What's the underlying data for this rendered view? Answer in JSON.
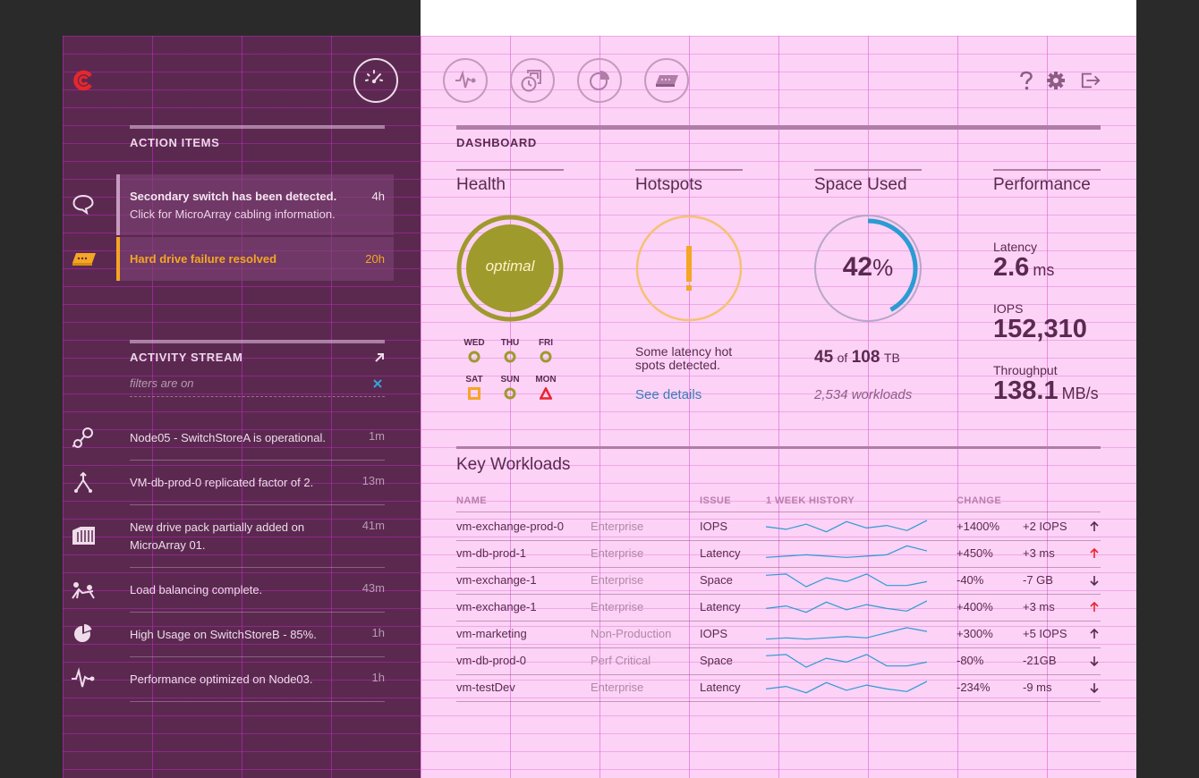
{
  "colors": {
    "sidebar_bg": "#5b2950",
    "main_bg": "#fcd2f6",
    "accent_plum": "#5b2950",
    "optimal_green": "#9e9a2c",
    "warning_orange": "#f5a623",
    "space_blue": "#2c9bd3",
    "alert_red": "#e8262b",
    "link_blue": "#3a7fb8"
  },
  "nav": {
    "icons": [
      "dashboard-icon",
      "performance-icon",
      "history-icon",
      "analytics-icon",
      "hardware-icon"
    ],
    "utility_icons": [
      "help-icon",
      "settings-icon",
      "logout-icon"
    ]
  },
  "sidebar": {
    "action_items": {
      "heading": "ACTION ITEMS",
      "items": [
        {
          "icon": "chat-bubble-icon",
          "title": "Secondary switch has been detected.",
          "subtitle": "Click for MicroArray cabling information.",
          "time": "4h",
          "status": "info"
        },
        {
          "icon": "hard-drive-icon",
          "title": "Hard drive failure resolved",
          "subtitle": "",
          "time": "20h",
          "status": "warning"
        }
      ]
    },
    "activity_stream": {
      "heading": "ACTIVITY STREAM",
      "filter_text": "filters are on",
      "items": [
        {
          "icon": "node-link-icon",
          "text": "Node05 - SwitchStoreA is operational.",
          "time": "1m"
        },
        {
          "icon": "replicate-icon",
          "text": "VM-db-prod-0 replicated factor of 2.",
          "time": "13m"
        },
        {
          "icon": "drive-pack-icon",
          "text": "New drive pack partially added on MicroArray 01.",
          "time": "41m"
        },
        {
          "icon": "balance-icon",
          "text": "Load balancing complete.",
          "time": "43m"
        },
        {
          "icon": "pie-usage-icon",
          "text": "High Usage on SwitchStoreB - 85%.",
          "time": "1h"
        },
        {
          "icon": "pulse-icon",
          "text": "Performance optimized on Node03.",
          "time": "1h"
        }
      ]
    }
  },
  "dashboard": {
    "heading": "DASHBOARD",
    "health": {
      "title": "Health",
      "status": "optimal",
      "days": [
        {
          "label": "WED",
          "state": "ok"
        },
        {
          "label": "THU",
          "state": "ok"
        },
        {
          "label": "FRI",
          "state": "ok"
        },
        {
          "label": "SAT",
          "state": "warning"
        },
        {
          "label": "SUN",
          "state": "ok"
        },
        {
          "label": "MON",
          "state": "alert"
        }
      ]
    },
    "hotspots": {
      "title": "Hotspots",
      "icon": "exclamation-icon",
      "message": "Some latency hot spots detected.",
      "link": "See details"
    },
    "space": {
      "title": "Space Used",
      "percent": 42,
      "percent_number": "42",
      "percent_sign": "%",
      "used": "45",
      "of": "of",
      "total": "108",
      "unit": "TB",
      "workloads": "2,534 workloads"
    },
    "performance": {
      "title": "Performance",
      "latency_label": "Latency",
      "latency_value": "2.6",
      "latency_unit": "ms",
      "iops_label": "IOPS",
      "iops_value": "152,310",
      "throughput_label": "Throughput",
      "throughput_value": "138.1",
      "throughput_unit": "MB/s"
    },
    "key_workloads": {
      "title": "Key Workloads",
      "columns": [
        "NAME",
        "ISSUE",
        "1 WEEK HISTORY",
        "CHANGE"
      ],
      "rows": [
        {
          "name": "vm-exchange-prod-0",
          "tier": "Enterprise",
          "issue": "IOPS",
          "change_pct": "+1400%",
          "change_abs": "+2 IOPS",
          "direction": "up",
          "severity": "normal",
          "history": [
            7,
            5,
            9,
            3,
            11,
            6,
            8,
            4,
            12
          ]
        },
        {
          "name": "vm-db-prod-1",
          "tier": "Enterprise",
          "issue": "Latency",
          "change_pct": "+450%",
          "change_abs": "+3 ms",
          "direction": "up",
          "severity": "alert",
          "history": [
            4,
            5,
            6,
            5,
            4,
            5,
            6,
            13,
            9
          ]
        },
        {
          "name": "vm-exchange-1",
          "tier": "Enterprise",
          "issue": "Space",
          "change_pct": "-40%",
          "change_abs": "-7 GB",
          "direction": "down",
          "severity": "normal",
          "history": [
            11,
            12,
            2,
            9,
            6,
            12,
            3,
            3,
            6
          ]
        },
        {
          "name": "vm-exchange-1",
          "tier": "Enterprise",
          "issue": "Latency",
          "change_pct": "+400%",
          "change_abs": "+3 ms",
          "direction": "up",
          "severity": "alert",
          "history": [
            6,
            8,
            3,
            11,
            5,
            9,
            6,
            4,
            12
          ]
        },
        {
          "name": "vm-marketing",
          "tier": "Non-Production",
          "issue": "IOPS",
          "change_pct": "+300%",
          "change_abs": "+5 IOPS",
          "direction": "up",
          "severity": "normal",
          "history": [
            3,
            4,
            3,
            4,
            5,
            4,
            8,
            12,
            9
          ]
        },
        {
          "name": "vm-db-prod-0",
          "tier": "Perf Critical",
          "issue": "Space",
          "change_pct": "-80%",
          "change_abs": "-21GB",
          "direction": "down",
          "severity": "normal",
          "history": [
            11,
            12,
            2,
            9,
            6,
            12,
            3,
            3,
            6
          ]
        },
        {
          "name": "vm-testDev",
          "tier": "Enterprise",
          "issue": "Latency",
          "change_pct": "-234%",
          "change_abs": "-9 ms",
          "direction": "down",
          "severity": "normal",
          "history": [
            6,
            8,
            3,
            11,
            5,
            9,
            6,
            4,
            12
          ]
        }
      ]
    }
  }
}
